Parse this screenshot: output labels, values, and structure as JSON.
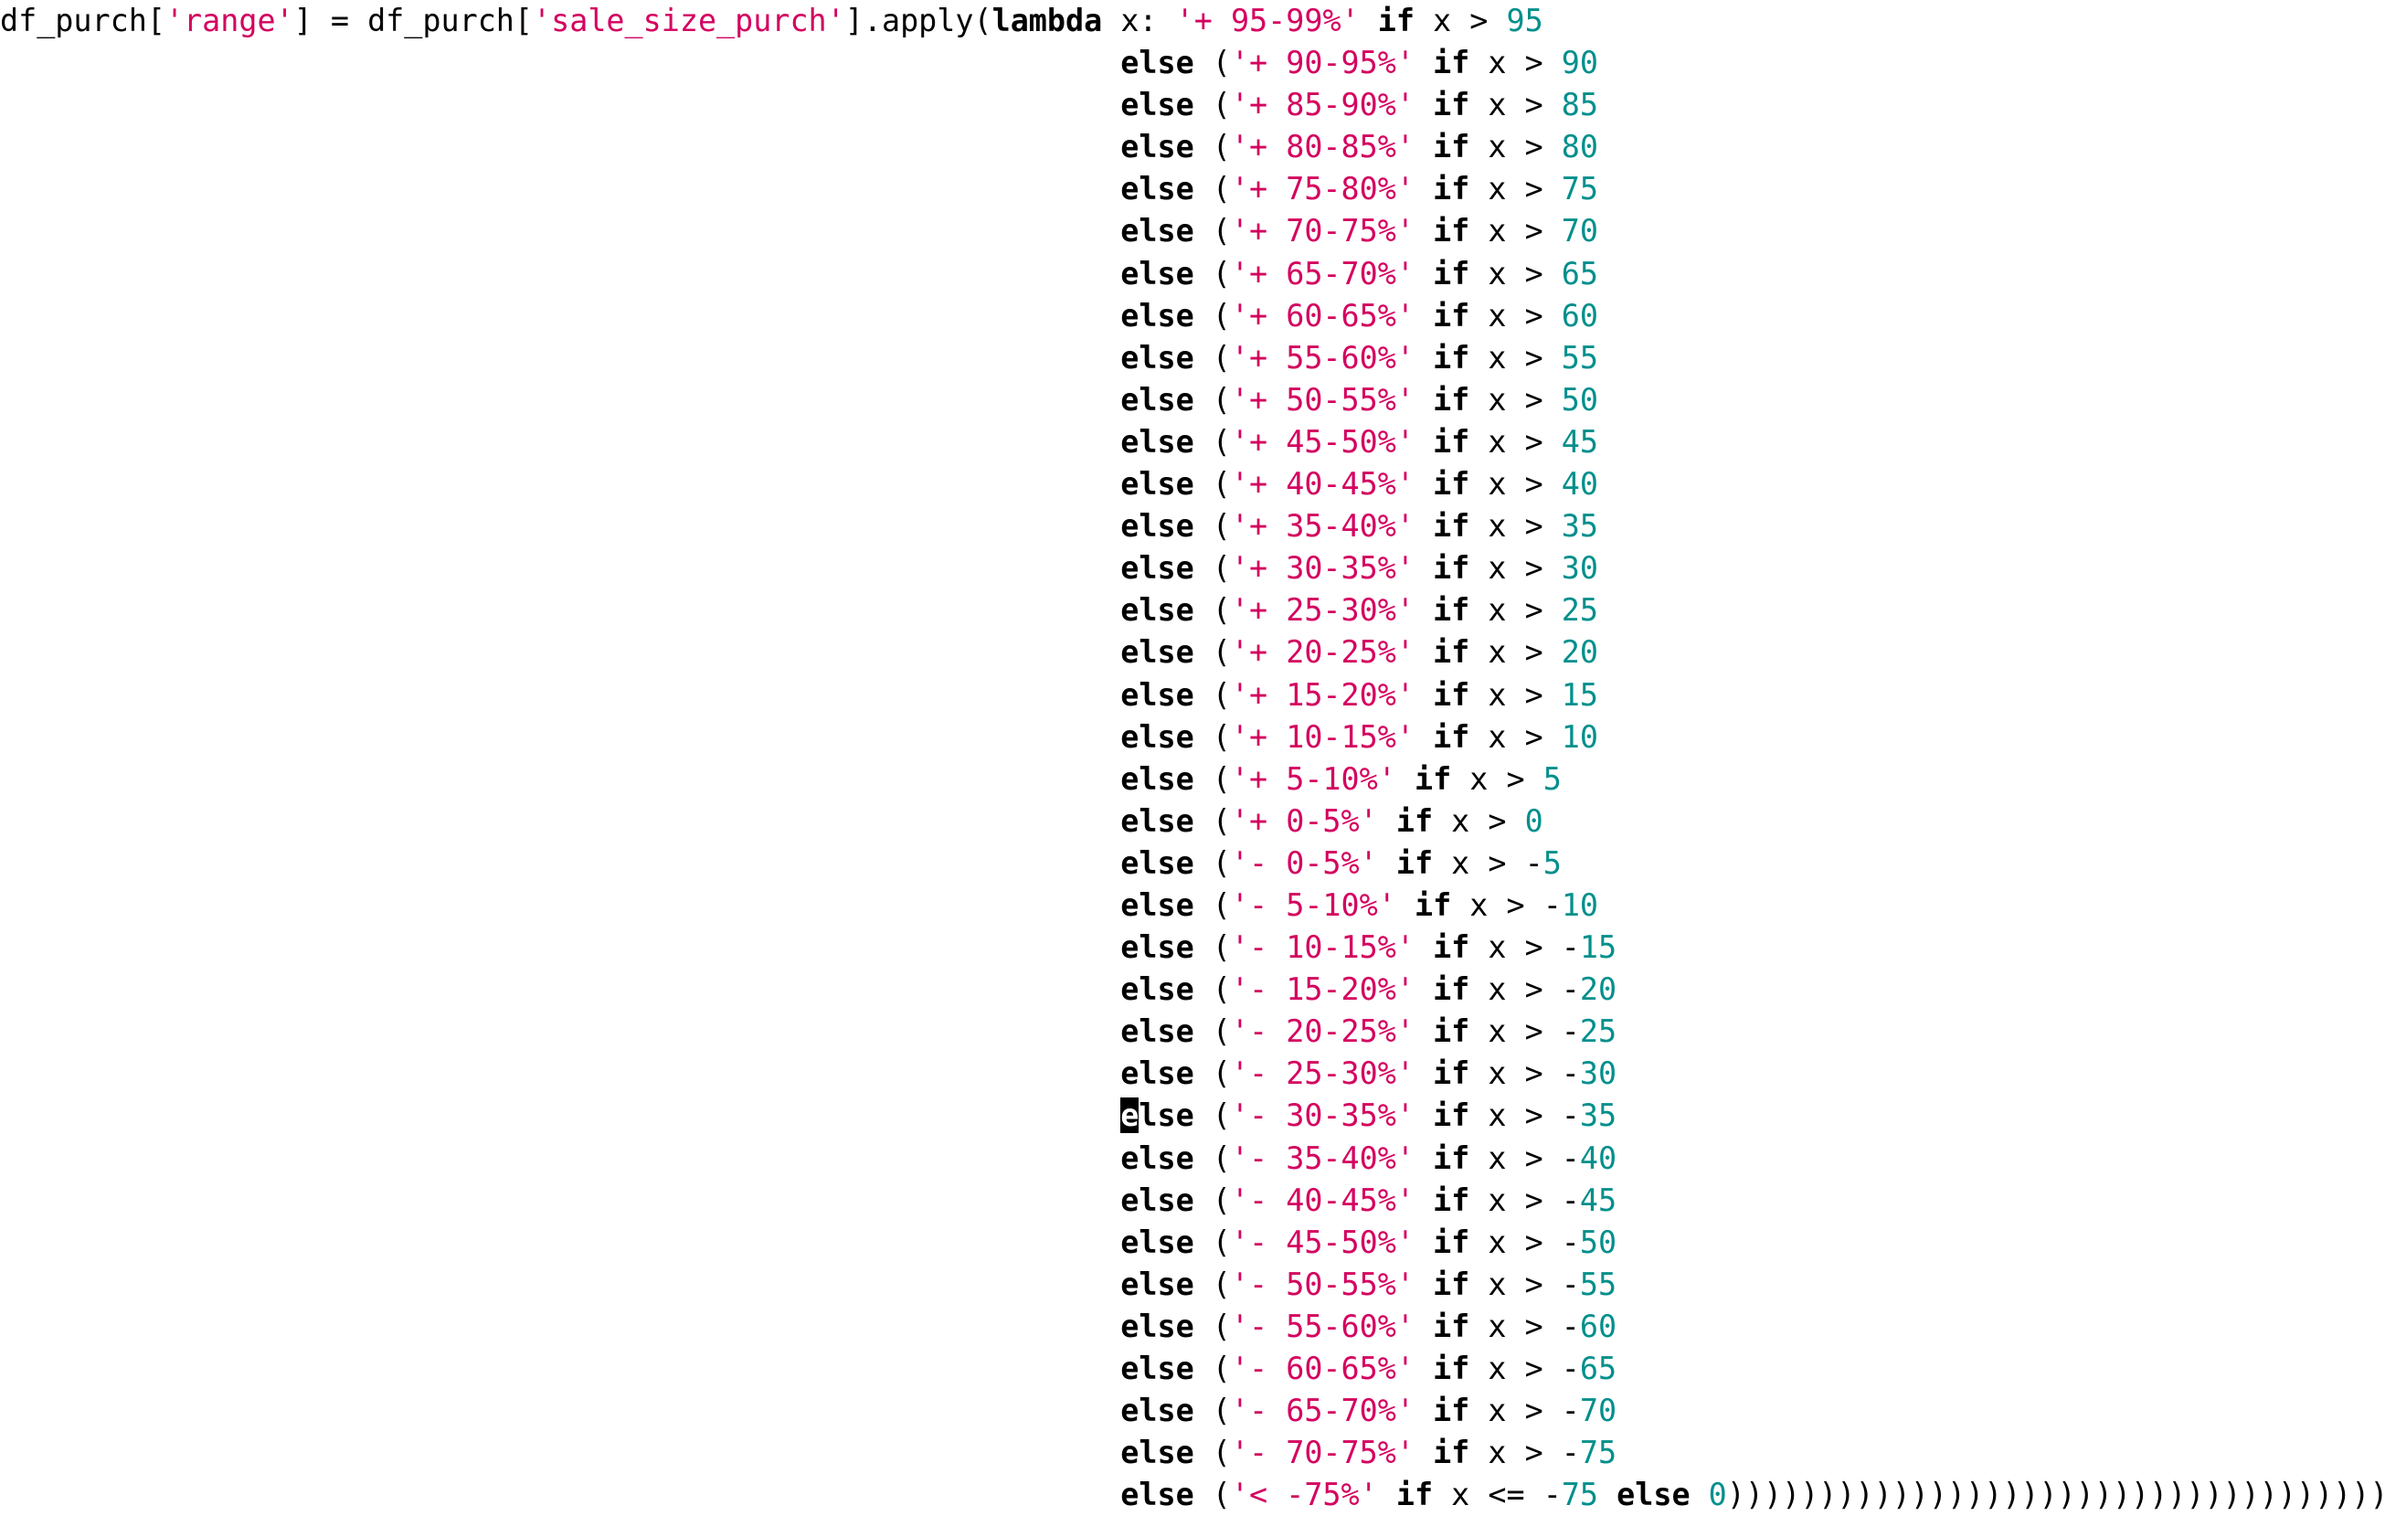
{
  "colors": {
    "string": "#d4005f",
    "number": "#008f8c",
    "keyword": "#000000",
    "text": "#000000"
  },
  "code": {
    "first_line": {
      "target_var": "df_purch",
      "target_key": "'range'",
      "source_var": "df_purch",
      "source_key": "'sale_size_purch'",
      "method": ".apply(",
      "lambda_kw": "lambda",
      "lambda_arg": "x: ",
      "label": "'+ 95-99%'",
      "threshold": "95"
    },
    "branches": [
      {
        "label": "'+ 90-95%'",
        "op": ">",
        "sign": "",
        "threshold": "90"
      },
      {
        "label": "'+ 85-90%'",
        "op": ">",
        "sign": "",
        "threshold": "85"
      },
      {
        "label": "'+ 80-85%'",
        "op": ">",
        "sign": "",
        "threshold": "80"
      },
      {
        "label": "'+ 75-80%'",
        "op": ">",
        "sign": "",
        "threshold": "75"
      },
      {
        "label": "'+ 70-75%'",
        "op": ">",
        "sign": "",
        "threshold": "70"
      },
      {
        "label": "'+ 65-70%'",
        "op": ">",
        "sign": "",
        "threshold": "65"
      },
      {
        "label": "'+ 60-65%'",
        "op": ">",
        "sign": "",
        "threshold": "60"
      },
      {
        "label": "'+ 55-60%'",
        "op": ">",
        "sign": "",
        "threshold": "55"
      },
      {
        "label": "'+ 50-55%'",
        "op": ">",
        "sign": "",
        "threshold": "50"
      },
      {
        "label": "'+ 45-50%'",
        "op": ">",
        "sign": "",
        "threshold": "45"
      },
      {
        "label": "'+ 40-45%'",
        "op": ">",
        "sign": "",
        "threshold": "40"
      },
      {
        "label": "'+ 35-40%'",
        "op": ">",
        "sign": "",
        "threshold": "35"
      },
      {
        "label": "'+ 30-35%'",
        "op": ">",
        "sign": "",
        "threshold": "30"
      },
      {
        "label": "'+ 25-30%'",
        "op": ">",
        "sign": "",
        "threshold": "25"
      },
      {
        "label": "'+ 20-25%'",
        "op": ">",
        "sign": "",
        "threshold": "20"
      },
      {
        "label": "'+ 15-20%'",
        "op": ">",
        "sign": "",
        "threshold": "15"
      },
      {
        "label": "'+ 10-15%'",
        "op": ">",
        "sign": "",
        "threshold": "10"
      },
      {
        "label": "'+ 5-10%'",
        "op": ">",
        "sign": "",
        "threshold": "5"
      },
      {
        "label": "'+ 0-5%'",
        "op": ">",
        "sign": "",
        "threshold": "0"
      },
      {
        "label": "'- 0-5%'",
        "op": ">",
        "sign": "-",
        "threshold": "5"
      },
      {
        "label": "'- 5-10%'",
        "op": ">",
        "sign": "-",
        "threshold": "10"
      },
      {
        "label": "'- 10-15%'",
        "op": ">",
        "sign": "-",
        "threshold": "15"
      },
      {
        "label": "'- 15-20%'",
        "op": ">",
        "sign": "-",
        "threshold": "20"
      },
      {
        "label": "'- 20-25%'",
        "op": ">",
        "sign": "-",
        "threshold": "25"
      },
      {
        "label": "'- 25-30%'",
        "op": ">",
        "sign": "-",
        "threshold": "30"
      },
      {
        "label": "'- 30-35%'",
        "op": ">",
        "sign": "-",
        "threshold": "35",
        "cursor": true
      },
      {
        "label": "'- 35-40%'",
        "op": ">",
        "sign": "-",
        "threshold": "40"
      },
      {
        "label": "'- 40-45%'",
        "op": ">",
        "sign": "-",
        "threshold": "45"
      },
      {
        "label": "'- 45-50%'",
        "op": ">",
        "sign": "-",
        "threshold": "50"
      },
      {
        "label": "'- 50-55%'",
        "op": ">",
        "sign": "-",
        "threshold": "55"
      },
      {
        "label": "'- 55-60%'",
        "op": ">",
        "sign": "-",
        "threshold": "60"
      },
      {
        "label": "'- 60-65%'",
        "op": ">",
        "sign": "-",
        "threshold": "65"
      },
      {
        "label": "'- 65-70%'",
        "op": ">",
        "sign": "-",
        "threshold": "70"
      },
      {
        "label": "'- 70-75%'",
        "op": ">",
        "sign": "-",
        "threshold": "75"
      }
    ],
    "last_line": {
      "label": "'< -75%'",
      "op": "<=",
      "sign": "-",
      "threshold": "75",
      "default": "0",
      "closing": "))))))))))))))))))))))))))))))))))))"
    }
  }
}
